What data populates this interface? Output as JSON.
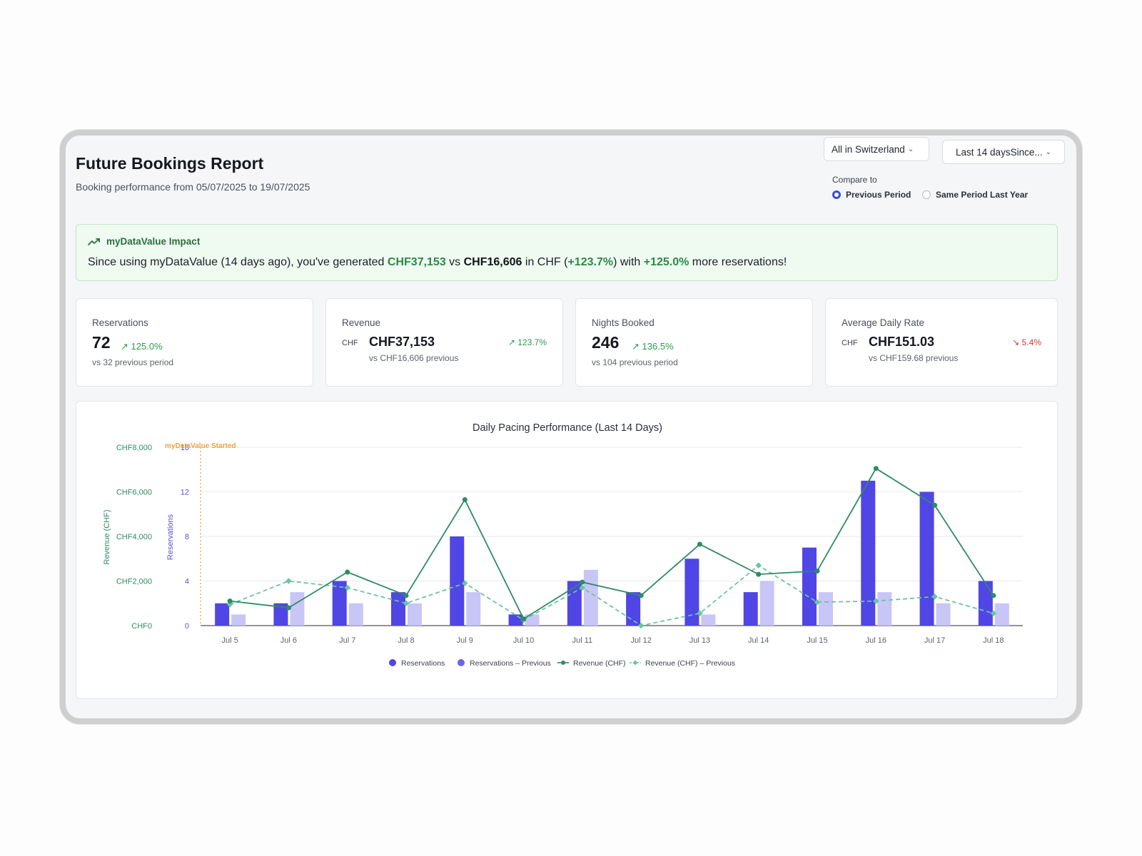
{
  "header": {
    "title": "Future Bookings Report",
    "subtitle": "Booking performance from 05/07/2025 to 19/07/2025"
  },
  "filters": {
    "country": "All in Switzerland",
    "range": "Last 14 daysSince...",
    "compare_label": "Compare to",
    "options": [
      {
        "label": "Previous Period",
        "selected": true
      },
      {
        "label": "Same Period Last Year",
        "selected": false
      }
    ]
  },
  "impact": {
    "heading": "myDataValue Impact",
    "t1": "Since using myDataValue (14 days ago), you've generated ",
    "revenue": "CHF37,153",
    "t2": " vs ",
    "previous": "CHF16,606",
    "t3": " in CHF (",
    "pct": "+123.7%",
    "t4": ") with ",
    "res_pct": "+125.0%",
    "t5": " more reservations!"
  },
  "cards": {
    "reservations": {
      "label": "Reservations",
      "value": "72",
      "trend": "125.0%",
      "sub": "vs 32 previous period"
    },
    "revenue": {
      "label": "Revenue",
      "currency": "CHF",
      "value": "CHF37,153",
      "trend": "123.7%",
      "sub": "vs CHF16,606 previous"
    },
    "nights": {
      "label": "Nights Booked",
      "value": "246",
      "trend": "136.5%",
      "sub": "vs 104 previous period"
    },
    "adr": {
      "label": "Average Daily Rate",
      "currency": "CHF",
      "value": "CHF151.03",
      "trend": "5.4%",
      "sub": "vs CHF159.68 previous"
    }
  },
  "colors": {
    "reservations": "#4f46e5",
    "reservations_prev": "#c7c6f7",
    "revenue": "#2e8b63",
    "revenue_prev": "#6cc4a0",
    "marker": "#e8a33c",
    "up": "#2b9a50",
    "down": "#d23b3b"
  },
  "chart_data": {
    "type": "bar",
    "title": "Daily Pacing Performance (Last 14 Days)",
    "categories": [
      "Jul 5",
      "Jul 6",
      "Jul 7",
      "Jul 8",
      "Jul 9",
      "Jul 10",
      "Jul 11",
      "Jul 12",
      "Jul 13",
      "Jul 14",
      "Jul 15",
      "Jul 16",
      "Jul 17",
      "Jul 18"
    ],
    "ylabel_left": "Revenue (CHF)",
    "ylabel_right": "Reservations",
    "revenue_ticks": [
      "CHF0",
      "CHF2,000",
      "CHF4,000",
      "CHF6,000",
      "CHF8,000"
    ],
    "reservation_ticks": [
      "0",
      "4",
      "8",
      "12",
      "16"
    ],
    "revenue_range": [
      0,
      8000
    ],
    "reservations_range": [
      0,
      16
    ],
    "marker_label": "myDataValue Started",
    "series": [
      {
        "name": "Reservations",
        "type": "bar",
        "values": [
          2,
          2,
          4,
          3,
          8,
          1,
          4,
          3,
          6,
          3,
          7,
          13,
          12,
          4
        ]
      },
      {
        "name": "Reservations – Previous",
        "type": "bar",
        "values": [
          1,
          3,
          2,
          2,
          3,
          1,
          5,
          0,
          1,
          4,
          3,
          3,
          2,
          2
        ]
      },
      {
        "name": "Revenue (CHF)",
        "type": "line",
        "values": [
          1100,
          800,
          2400,
          1350,
          5650,
          300,
          1950,
          1350,
          3650,
          2300,
          2450,
          7050,
          5400,
          1350
        ]
      },
      {
        "name": "Revenue (CHF) – Previous",
        "type": "line",
        "values": [
          950,
          2000,
          1700,
          1000,
          1900,
          250,
          1700,
          0,
          550,
          2700,
          1050,
          1100,
          1300,
          550
        ]
      }
    ],
    "legend_position": "bottom"
  }
}
